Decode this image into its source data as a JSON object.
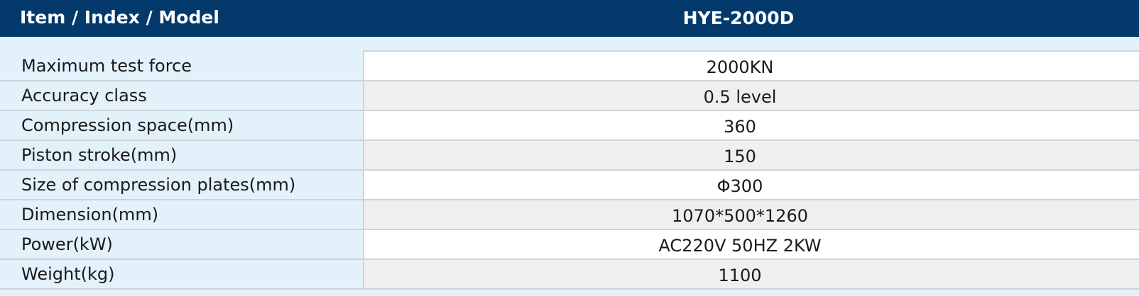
{
  "header": {
    "columns": [
      "Item / Index / Model",
      "HYE-2000D"
    ]
  },
  "table": {
    "rows": [
      [
        "Maximum test force",
        "2000KN"
      ],
      [
        "Accuracy class",
        "0.5 level"
      ],
      [
        "Compression space(mm)",
        "360"
      ],
      [
        "Piston stroke(mm)",
        "150"
      ],
      [
        "Size of compression plates(mm)",
        "Φ300"
      ],
      [
        "Dimension(mm)",
        "1070*500*1260"
      ],
      [
        "Power(kW)",
        "AC220V 50HZ 2KW"
      ],
      [
        "Weight(kg)",
        "1100"
      ]
    ]
  }
}
